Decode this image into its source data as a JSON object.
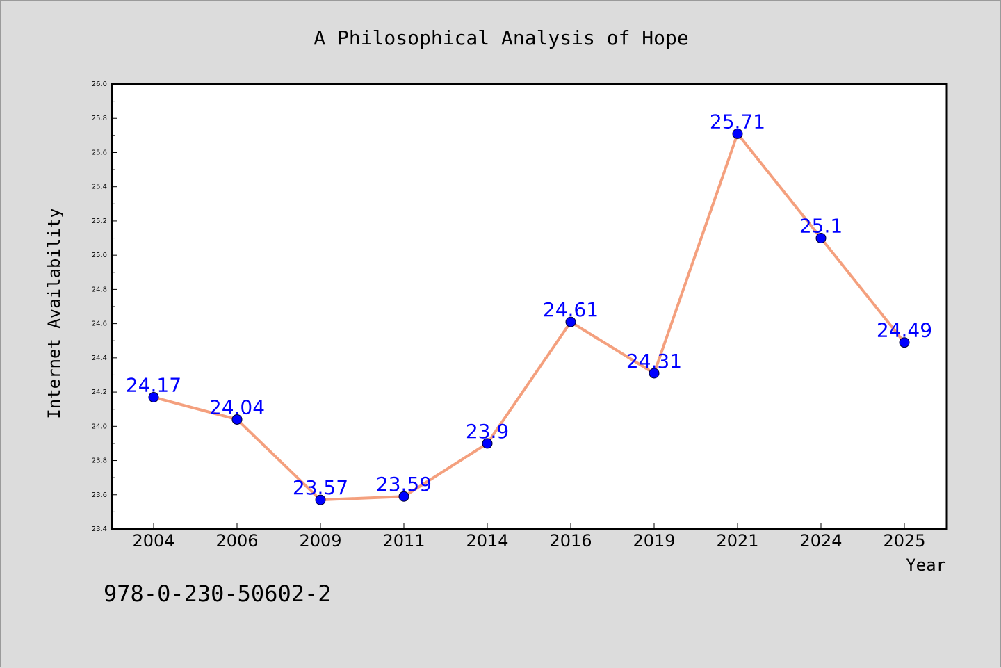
{
  "chart_data": {
    "type": "line",
    "title": "A Philosophical Analysis of Hope",
    "xlabel": "Year",
    "ylabel": "Internet Availability",
    "categories": [
      "2004",
      "2006",
      "2009",
      "2011",
      "2014",
      "2016",
      "2019",
      "2021",
      "2024",
      "2025"
    ],
    "series": [
      {
        "values": [
          24.17,
          24.04,
          23.57,
          23.59,
          23.9,
          24.61,
          24.31,
          25.71,
          25.1,
          24.49
        ]
      }
    ],
    "data_labels": [
      "24.17",
      "24.04",
      "23.57",
      "23.59",
      "23.9",
      "24.61",
      "24.31",
      "25.71",
      "25.1",
      "24.49"
    ],
    "ylim": [
      23.4,
      26.0
    ],
    "yticks": [
      "23.4",
      "23.6",
      "23.8",
      "24.0",
      "24.2",
      "24.4",
      "24.6",
      "24.8",
      "25.0",
      "25.2",
      "25.4",
      "25.6",
      "25.8",
      "26.0"
    ],
    "grid": false,
    "legend": "none",
    "colors": {
      "line": "#f4a07e",
      "marker": "#0000ff",
      "label": "#0000ff",
      "background": "#dcdcdc",
      "plot_background": "#ffffff"
    }
  },
  "footer_text": "978-0-230-50602-2"
}
